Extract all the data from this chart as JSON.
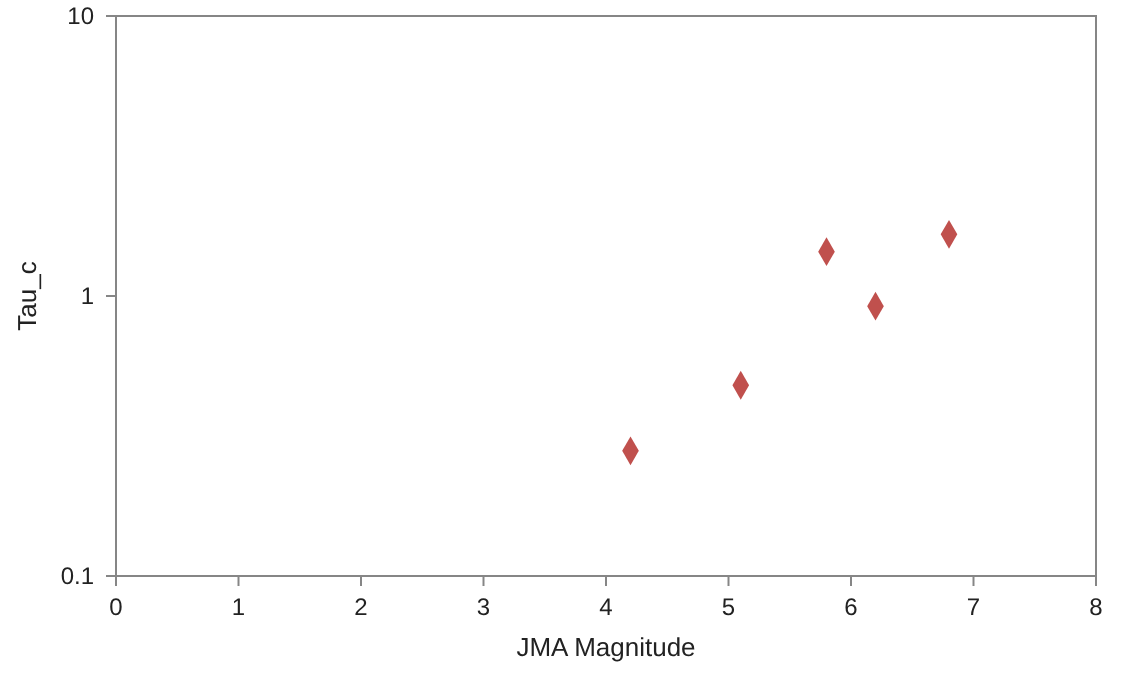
{
  "chart_data": {
    "type": "scatter",
    "xlabel": "JMA Magnitude",
    "ylabel": "Tau_c",
    "log": "y",
    "grid": false,
    "marker": "diamond",
    "x": [
      4.2,
      5.1,
      5.8,
      6.2,
      6.8
    ],
    "series": [
      {
        "color": "#c0504d",
        "values": [
          0.28,
          0.48,
          1.44,
          0.92,
          1.66
        ]
      }
    ],
    "xlim": [
      0,
      8
    ],
    "xticks": [
      0,
      1,
      2,
      3,
      4,
      5,
      6,
      7,
      8
    ],
    "ylim": [
      0.1,
      10
    ],
    "yticks": [
      0.1,
      1,
      10
    ]
  }
}
